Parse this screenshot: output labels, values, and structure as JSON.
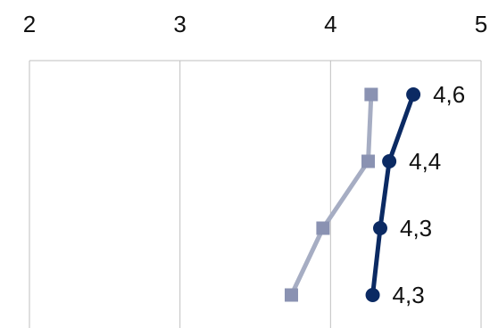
{
  "chart_data": {
    "type": "line",
    "orientation": "horizontal-values",
    "xlim": [
      2,
      5
    ],
    "x_ticks": [
      "2",
      "3",
      "4",
      "5"
    ],
    "grid": true,
    "legend": "none",
    "categories_count": 4,
    "series": [
      {
        "marker": "circle",
        "color": "#0b2a63",
        "values": [
          4.55,
          4.39,
          4.33,
          4.28
        ],
        "labels": [
          "4,6",
          "4,4",
          "4,3",
          "4,3"
        ]
      },
      {
        "marker": "square",
        "color": "#a6adc3",
        "marker_color": "#8a92b2",
        "values": [
          4.27,
          4.25,
          3.95,
          3.74
        ]
      }
    ]
  }
}
